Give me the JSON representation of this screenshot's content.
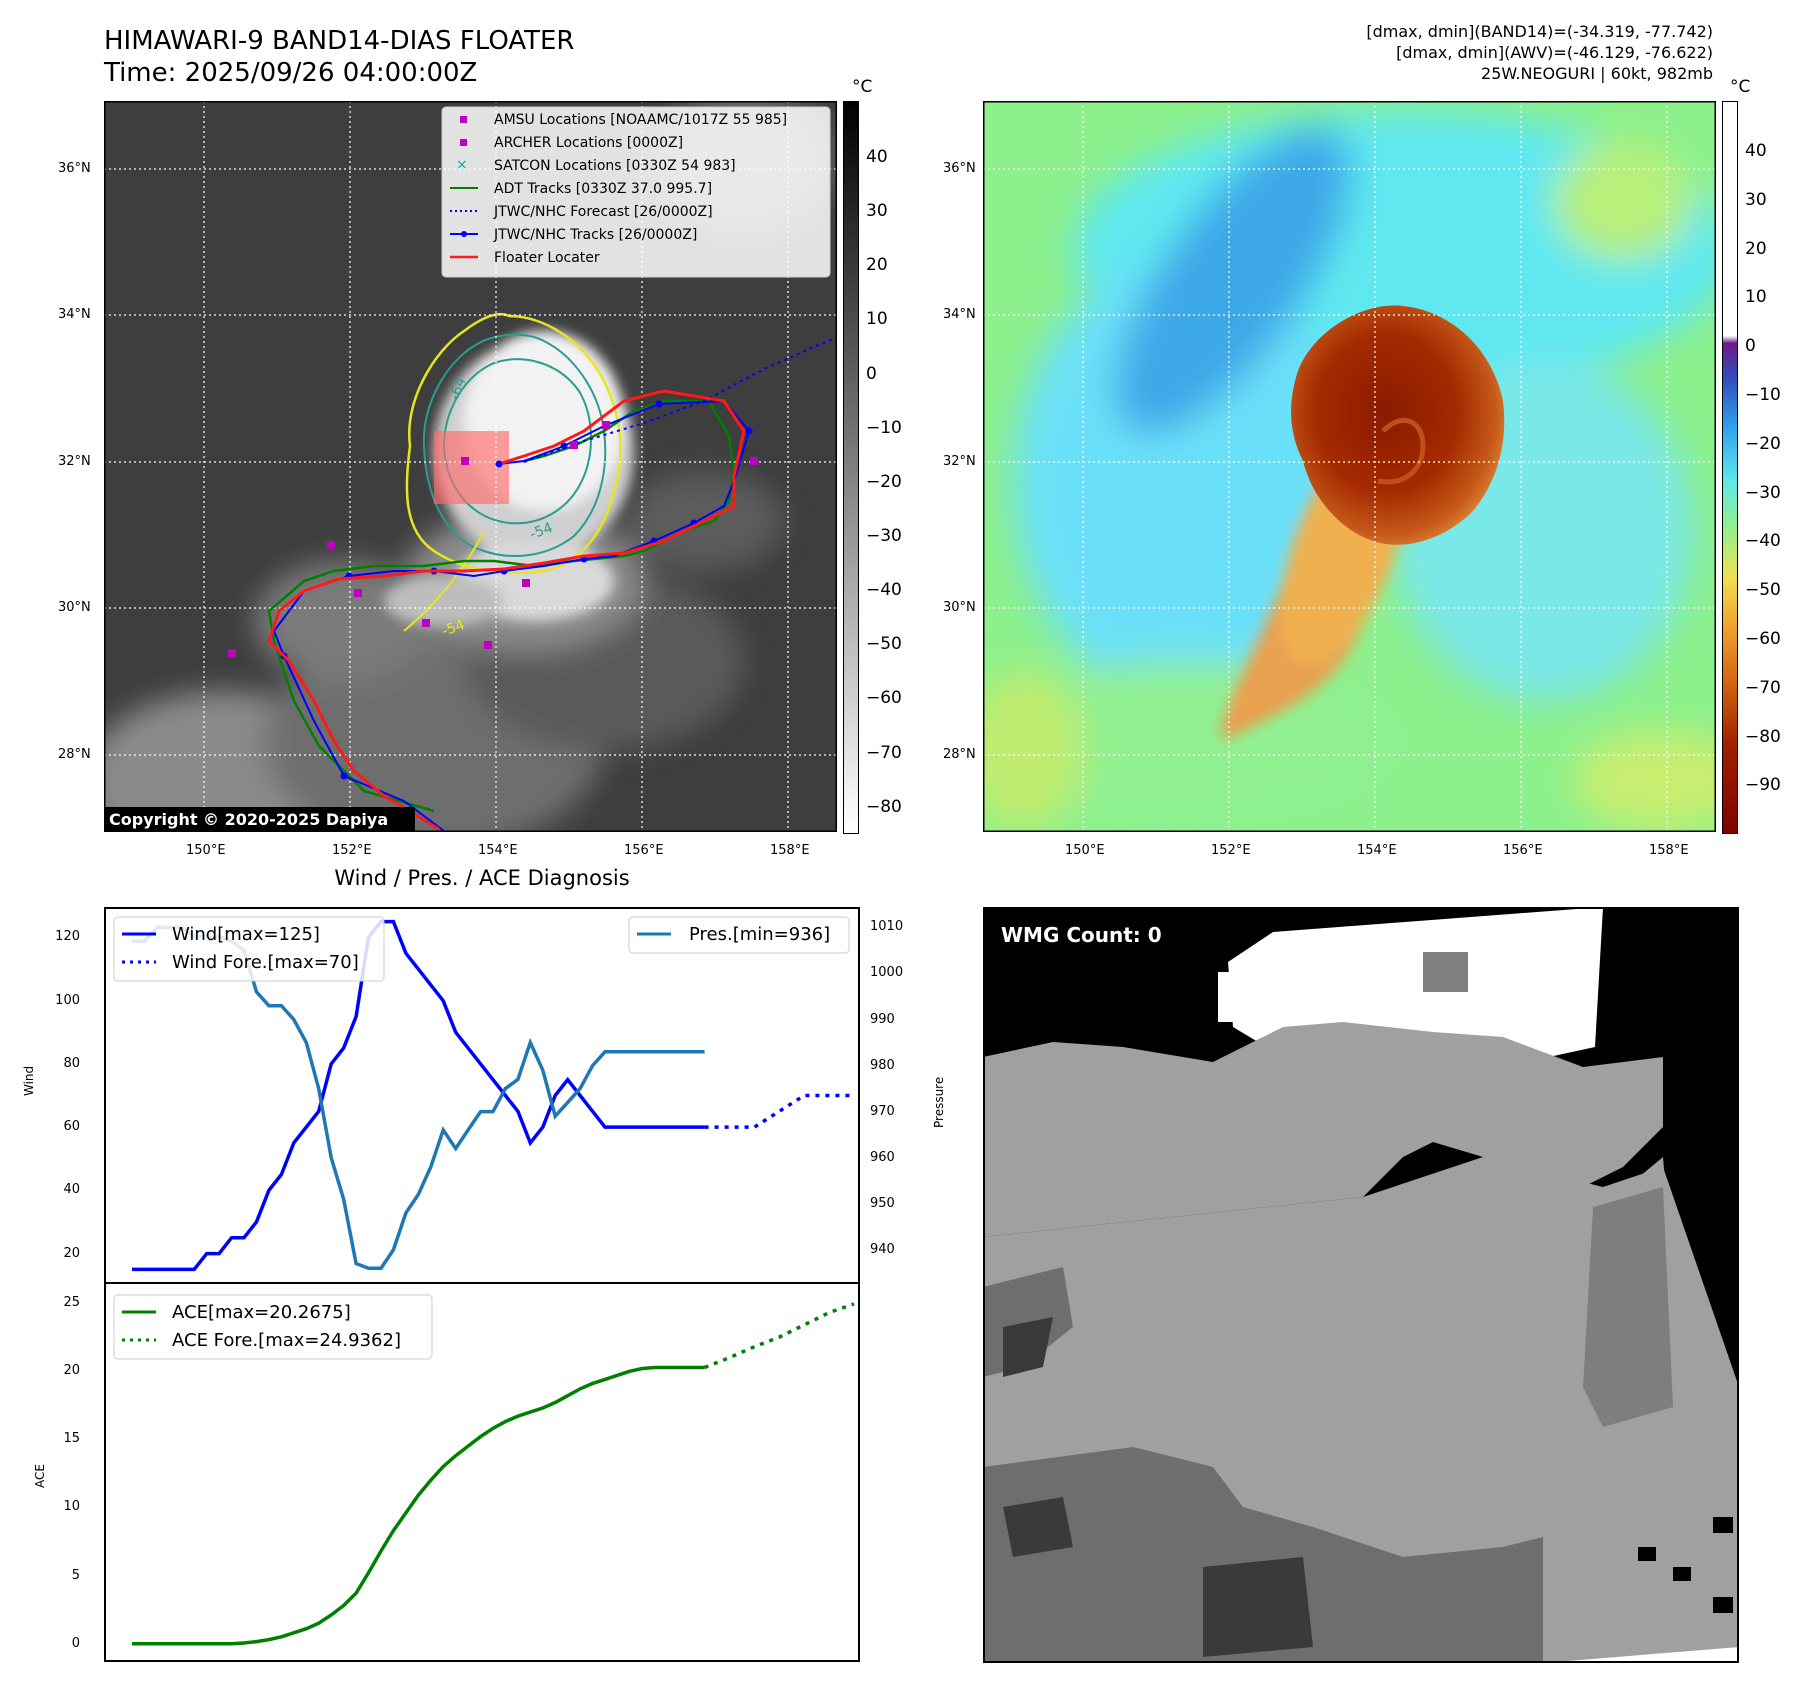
{
  "header": {
    "title_line1": "HIMAWARI-9 BAND14-DIAS FLOATER",
    "title_line2": "Time: 2025/09/26 04:00:00Z",
    "right_line1": "[dmax, dmin](BAND14)=(-34.319, -77.742)",
    "right_line2": "[dmax, dmin](AWV)=(-46.129, -76.622)",
    "right_line3": "25W.NEOGURI | 60kt, 982mb"
  },
  "map": {
    "lat_labels": [
      "36°N",
      "34°N",
      "32°N",
      "30°N",
      "28°N"
    ],
    "lon_labels": [
      "150°E",
      "152°E",
      "154°E",
      "156°E",
      "158°E"
    ],
    "copyright": "Copyright © 2020-2025 Dapiya",
    "contour_labels": [
      "-64",
      "-54",
      "-54"
    ],
    "legend": [
      {
        "label": "AMSU Locations [NOAAMC/1017Z 55 985]",
        "color": "#c000c0",
        "marker": "square"
      },
      {
        "label": "ARCHER Locations [0000Z]",
        "color": "#c000c0",
        "marker": "square"
      },
      {
        "label": "SATCON Locations [0330Z 54 983]",
        "color": "#00b0b0",
        "marker": "x"
      },
      {
        "label": "ADT Tracks [0330Z 37.0 995.7]",
        "color": "#008000",
        "marker": "line"
      },
      {
        "label": "JTWC/NHC Forecast [26/0000Z]",
        "color": "#0000ff",
        "marker": "dotted"
      },
      {
        "label": "JTWC/NHC Tracks [26/0000Z]",
        "color": "#0000ff",
        "marker": "line-dot"
      },
      {
        "label": "Floater Locater",
        "color": "#ff0000",
        "marker": "line"
      }
    ]
  },
  "colorbar_gray": {
    "unit": "°C",
    "ticks": [
      "40",
      "30",
      "20",
      "10",
      "0",
      "−10",
      "−20",
      "−30",
      "−40",
      "−50",
      "−60",
      "−70",
      "−80"
    ]
  },
  "colorbar_color": {
    "unit": "°C",
    "ticks": [
      "40",
      "30",
      "20",
      "10",
      "0",
      "−10",
      "−20",
      "−30",
      "−40",
      "−50",
      "−60",
      "−70",
      "−80",
      "−90"
    ]
  },
  "diag": {
    "title": "Wind / Pres. / ACE Diagnosis",
    "wind_ylabel": "Wind",
    "pres_ylabel": "Pressure",
    "ace_ylabel": "ACE",
    "wind_ticks": [
      "120",
      "100",
      "80",
      "60",
      "40",
      "20"
    ],
    "pres_ticks": [
      "1010",
      "1000",
      "990",
      "980",
      "970",
      "960",
      "950",
      "940"
    ],
    "ace_ticks": [
      "25",
      "20",
      "15",
      "10",
      "5",
      "0"
    ],
    "legend_wind": "Wind[max=125]",
    "legend_wind_fore": "Wind Fore.[max=70]",
    "legend_pres": "Pres.[min=936]",
    "legend_ace": "ACE[max=20.2675]",
    "legend_ace_fore": "ACE Fore.[max=24.9362]"
  },
  "wmg": {
    "label": "WMG Count: 0"
  },
  "chart_data": [
    {
      "type": "line",
      "title": "Wind / Pres. / ACE Diagnosis",
      "ylabel": "Wind",
      "ylim": [
        11,
        129
      ],
      "xlim": [
        0,
        58
      ],
      "series": [
        {
          "name": "Wind[max=125]",
          "color": "#0000ff",
          "x": [
            0,
            2,
            4,
            5,
            6,
            7,
            8,
            9,
            10,
            11,
            12,
            13,
            14,
            15,
            16,
            17,
            18,
            19,
            20,
            21,
            22,
            23,
            24,
            25,
            26,
            27,
            28,
            29,
            30,
            31,
            32,
            33,
            34,
            35,
            36,
            37,
            38,
            39,
            40,
            41,
            42,
            43,
            44,
            45,
            46
          ],
          "values": [
            15,
            15,
            15,
            15,
            20,
            20,
            25,
            25,
            30,
            40,
            45,
            55,
            60,
            65,
            80,
            85,
            95,
            120,
            125,
            125,
            115,
            110,
            105,
            100,
            90,
            85,
            80,
            75,
            70,
            65,
            55,
            60,
            70,
            75,
            70,
            65,
            60,
            60,
            60,
            60,
            60,
            60,
            60,
            60,
            60
          ]
        },
        {
          "name": "Wind Fore.[max=70]",
          "color": "#0000ff",
          "dash": "dotted",
          "x": [
            46,
            48,
            50,
            52,
            54,
            56,
            58
          ],
          "values": [
            60,
            60,
            60,
            65,
            70,
            70,
            70
          ]
        }
      ]
    },
    {
      "type": "line",
      "ylabel": "Pressure",
      "ylim": [
        933,
        1014
      ],
      "xlim": [
        0,
        58
      ],
      "series": [
        {
          "name": "Pres.[min=936]",
          "color": "#1f77b4",
          "x": [
            0,
            1,
            2,
            3,
            4,
            5,
            6,
            7,
            8,
            9,
            10,
            11,
            12,
            13,
            14,
            15,
            16,
            17,
            18,
            19,
            20,
            21,
            22,
            23,
            24,
            25,
            26,
            27,
            28,
            29,
            30,
            31,
            32,
            33,
            34,
            35,
            36,
            37,
            38,
            39,
            40,
            41,
            42,
            43,
            44,
            45,
            46
          ],
          "values": [
            1007,
            1007,
            1010,
            1010,
            1010,
            1008,
            1008,
            1008,
            1007,
            1005,
            996,
            993,
            993,
            990,
            985,
            975,
            960,
            951,
            937,
            936,
            936,
            940,
            948,
            952,
            958,
            966,
            962,
            966,
            970,
            970,
            975,
            977,
            985,
            979,
            969,
            972,
            975,
            980,
            983,
            983,
            983,
            983,
            983,
            983,
            983,
            983,
            983
          ]
        }
      ]
    },
    {
      "type": "line",
      "ylabel": "ACE",
      "ylim": [
        -1.2,
        26.4
      ],
      "xlim": [
        0,
        58
      ],
      "series": [
        {
          "name": "ACE[max=20.2675]",
          "color": "#008000",
          "x": [
            0,
            5,
            8,
            9,
            10,
            11,
            12,
            13,
            14,
            15,
            16,
            17,
            18,
            19,
            20,
            21,
            22,
            23,
            24,
            25,
            26,
            27,
            28,
            29,
            30,
            31,
            32,
            33,
            34,
            35,
            36,
            37,
            38,
            39,
            40,
            41,
            42,
            43,
            44,
            45,
            46
          ],
          "values": [
            0,
            0,
            0,
            0.05,
            0.15,
            0.3,
            0.5,
            0.8,
            1.1,
            1.5,
            2.1,
            2.8,
            3.7,
            5.2,
            6.8,
            8.3,
            9.6,
            10.9,
            12.0,
            13.0,
            13.8,
            14.5,
            15.2,
            15.8,
            16.3,
            16.7,
            17.0,
            17.3,
            17.7,
            18.2,
            18.7,
            19.1,
            19.4,
            19.7,
            20.0,
            20.2,
            20.27,
            20.27,
            20.27,
            20.27,
            20.27
          ]
        },
        {
          "name": "ACE Fore.[max=24.9362]",
          "color": "#008000",
          "dash": "dotted",
          "x": [
            46,
            48,
            50,
            52,
            54,
            56,
            58
          ],
          "values": [
            20.27,
            21.0,
            21.8,
            22.5,
            23.4,
            24.3,
            24.94
          ]
        }
      ]
    }
  ]
}
